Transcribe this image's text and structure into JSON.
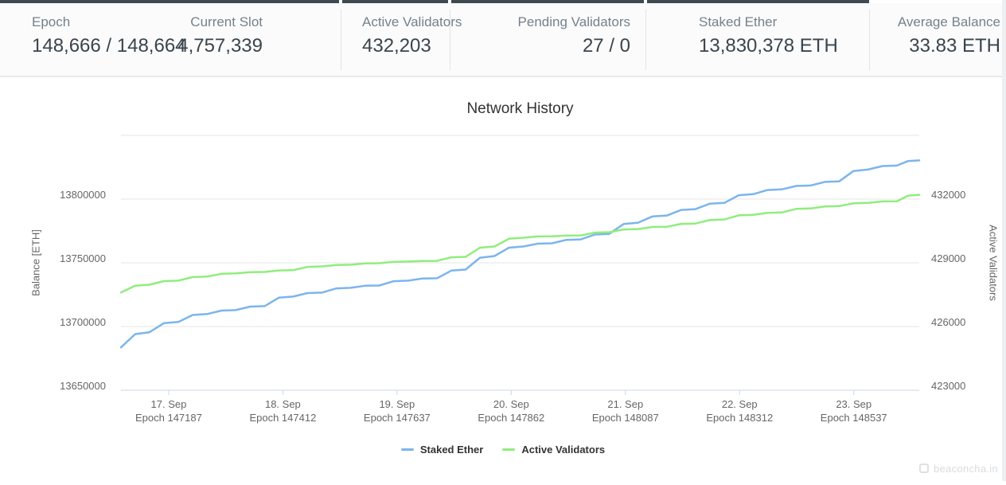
{
  "colors": {
    "top_bar": "#3e4a50",
    "label_gray": "#75818b",
    "value_dark": "#3a444c",
    "gridline": "#e6e6e6",
    "axis_line": "#ccd6eb",
    "series_staked": "#7cb5ec",
    "series_validators": "#90ed7d"
  },
  "stats": {
    "cards": [
      {
        "label": "Epoch",
        "value": "148,666 / 148,664"
      },
      {
        "label": "Current Slot",
        "value": "4,757,339"
      },
      {
        "label": "Active Validators",
        "value": "432,203"
      },
      {
        "label": "Pending Validators",
        "value": "27 / 0"
      },
      {
        "label": "Staked Ether",
        "value": "13,830,378 ETH"
      },
      {
        "label": "Average Balance",
        "value": "33.83 ETH"
      }
    ]
  },
  "chart_data": {
    "type": "line",
    "title": "Network History",
    "grid": true,
    "legend_position": "bottom",
    "x_axis": {
      "range": [
        147093,
        148666
      ],
      "ticks": [
        {
          "date": "17. Sep",
          "epoch_label": "Epoch 147187",
          "epoch": 147187
        },
        {
          "date": "18. Sep",
          "epoch_label": "Epoch 147412",
          "epoch": 147412
        },
        {
          "date": "19. Sep",
          "epoch_label": "Epoch 147637",
          "epoch": 147637
        },
        {
          "date": "20. Sep",
          "epoch_label": "Epoch 147862",
          "epoch": 147862
        },
        {
          "date": "21. Sep",
          "epoch_label": "Epoch 148087",
          "epoch": 148087
        },
        {
          "date": "22. Sep",
          "epoch_label": "Epoch 148312",
          "epoch": 148312
        },
        {
          "date": "23. Sep",
          "epoch_label": "Epoch 148537",
          "epoch": 148537
        }
      ]
    },
    "y_axis_left": {
      "title": "Balance [ETH]",
      "range": [
        13650000,
        13850000
      ],
      "ticks": [
        13650000,
        13700000,
        13750000,
        13800000
      ],
      "gridlines": [
        13700000,
        13750000,
        13800000,
        13850000
      ]
    },
    "y_axis_right": {
      "title": "Active Validators",
      "range": [
        423000,
        435000
      ],
      "ticks": [
        423000,
        426000,
        429000,
        432000
      ]
    },
    "x_epochs": [
      147093,
      147149,
      147206,
      147263,
      147319,
      147376,
      147432,
      147489,
      147546,
      147602,
      147659,
      147716,
      147772,
      147829,
      147886,
      147942,
      147999,
      148055,
      148112,
      148169,
      148225,
      148282,
      148339,
      148395,
      148452,
      148508,
      148565,
      148622,
      148666
    ],
    "series": [
      {
        "name": "Staked Ether",
        "color": "#7cb5ec",
        "axis": "left",
        "values": [
          13683600,
          13695500,
          13703600,
          13709800,
          13712900,
          13716000,
          13723500,
          13726600,
          13730400,
          13732200,
          13736000,
          13737900,
          13744700,
          13755300,
          13762800,
          13765300,
          13768400,
          13772700,
          13781500,
          13787100,
          13792100,
          13797000,
          13803900,
          13807600,
          13810700,
          13813900,
          13823200,
          13826300,
          13830378
        ]
      },
      {
        "name": "Active Validators",
        "color": "#90ed7d",
        "axis": "right",
        "values": [
          427600,
          427970,
          428160,
          428350,
          428500,
          428570,
          428650,
          428830,
          428910,
          428980,
          429060,
          429090,
          429280,
          429770,
          430180,
          430250,
          430290,
          430440,
          430590,
          430700,
          430850,
          431040,
          431260,
          431370,
          431560,
          431670,
          431820,
          431900,
          432203
        ]
      }
    ]
  },
  "watermark": {
    "text": "beaconcha.in"
  }
}
